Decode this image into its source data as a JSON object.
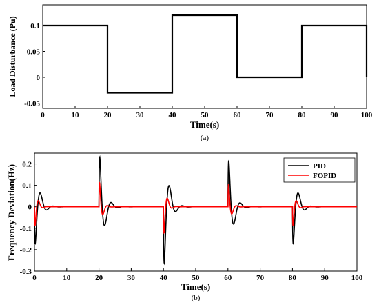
{
  "chart_data": [
    {
      "type": "line",
      "xlabel": "Time(s)",
      "ylabel": "Load Disturbance (Pu)",
      "caption": "(a)",
      "xlim": [
        0,
        100
      ],
      "ylim": [
        -0.06,
        0.14
      ],
      "xticks": [
        0,
        10,
        20,
        30,
        40,
        50,
        60,
        70,
        80,
        90,
        100
      ],
      "yticks": [
        -0.05,
        0,
        0.05,
        0.1
      ],
      "ytick_labels": [
        "-0.05",
        "0",
        "0.05",
        "0.1"
      ],
      "grid": false,
      "series": [
        {
          "color": "#000000",
          "x": [
            0,
            20,
            20,
            40,
            40,
            60,
            60,
            80,
            80,
            100,
            100
          ],
          "y": [
            0.1,
            0.1,
            -0.03,
            -0.03,
            0.12,
            0.12,
            0,
            0,
            0.1,
            0.1,
            0
          ]
        }
      ]
    },
    {
      "type": "line",
      "xlabel": "Time(s)",
      "ylabel": "Frequency Deviation(Hz)",
      "caption": "(b)",
      "xlim": [
        0,
        100
      ],
      "ylim": [
        -0.3,
        0.25
      ],
      "xticks": [
        0,
        10,
        20,
        30,
        40,
        50,
        60,
        70,
        80,
        90,
        100
      ],
      "yticks": [
        -0.3,
        -0.2,
        -0.1,
        0,
        0.1,
        0.2
      ],
      "ytick_labels": [
        "-0.3",
        "-0.2",
        "-0.1",
        "0",
        "0.1",
        "0.2"
      ],
      "grid": false,
      "legend_position": "top-right",
      "events": [
        {
          "t": 0,
          "pid": -0.14,
          "fopid": -0.085
        },
        {
          "t": 20,
          "pid": 0.19,
          "fopid": 0.11
        },
        {
          "t": 40,
          "pid": -0.215,
          "fopid": -0.12
        },
        {
          "t": 60,
          "pid": 0.175,
          "fopid": 0.1
        },
        {
          "t": 80,
          "pid": -0.14,
          "fopid": -0.085
        }
      ],
      "series": [
        {
          "name": "PID",
          "color": "#000000"
        },
        {
          "name": "FOPID",
          "color": "#ff0000"
        }
      ]
    }
  ]
}
